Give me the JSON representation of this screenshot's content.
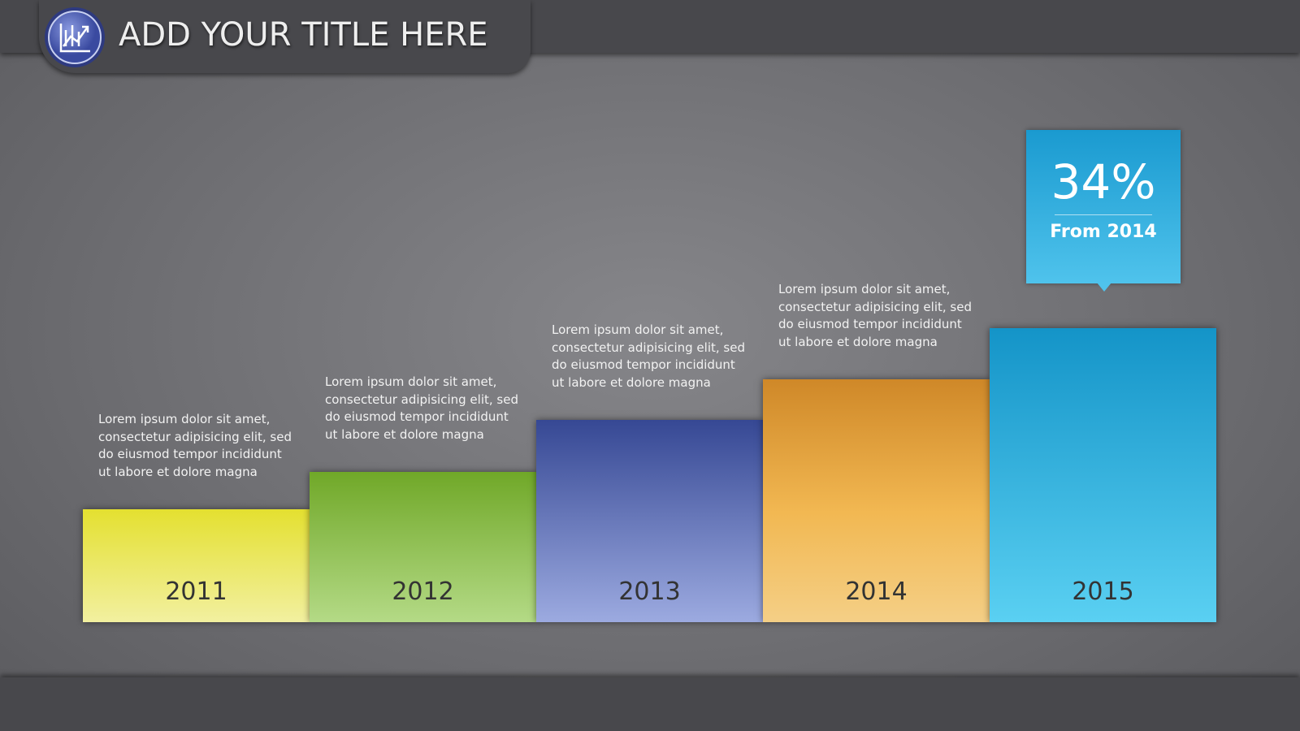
{
  "header": {
    "title": "ADD YOUR TITLE HERE"
  },
  "steps": [
    {
      "label": "2011",
      "text": "Lorem ipsum dolor sit amet, consectetur adipisicing elit, sed do eiusmod tempor incididunt ut labore et dolore magna"
    },
    {
      "label": "2012",
      "text": "Lorem ipsum dolor sit amet, consectetur adipisicing elit, sed do eiusmod tempor incididunt ut labore et dolore magna"
    },
    {
      "label": "2013",
      "text": "Lorem ipsum dolor sit amet, consectetur adipisicing elit, sed do eiusmod tempor incididunt ut labore et dolore magna"
    },
    {
      "label": "2014",
      "text": "Lorem ipsum dolor sit amet, consectetur adipisicing elit, sed do eiusmod tempor incididunt ut labore et dolore magna"
    },
    {
      "label": "2015"
    }
  ],
  "callout": {
    "value": "34%",
    "caption": "From 2014"
  }
}
